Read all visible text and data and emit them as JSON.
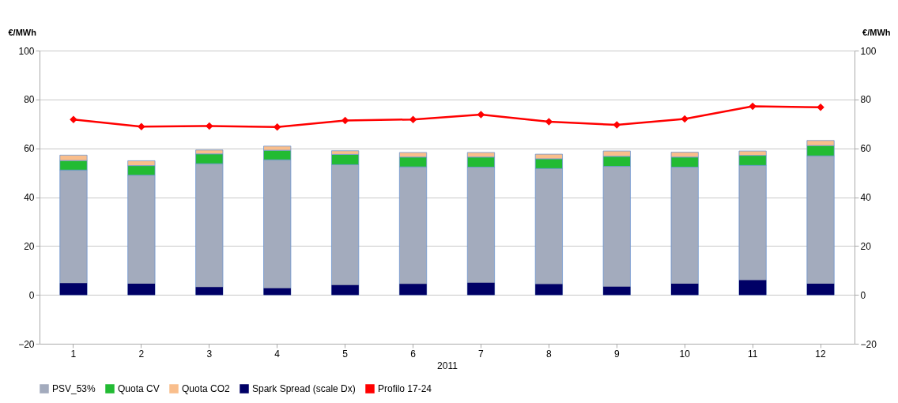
{
  "chart_data": {
    "type": "bar",
    "stacked": true,
    "xlabel": "2011",
    "ylabel": "€/MWh",
    "y2label": "€/MWh",
    "categories": [
      "1",
      "2",
      "3",
      "4",
      "5",
      "6",
      "7",
      "8",
      "9",
      "10",
      "11",
      "12"
    ],
    "series": [
      {
        "name": "PSV_53%",
        "color": "#a3abbd",
        "values": [
          51.1,
          49.0,
          53.7,
          55.3,
          53.3,
          52.4,
          52.3,
          51.7,
          52.6,
          52.3,
          53.0,
          56.9
        ]
      },
      {
        "name": "Quota CV",
        "color": "#22bb33",
        "values": [
          3.9,
          3.9,
          4.0,
          3.9,
          4.2,
          4.0,
          4.1,
          4.0,
          4.1,
          4.1,
          4.1,
          4.2
        ]
      },
      {
        "name": "Quota CO2",
        "color": "#f9be8c",
        "values": [
          2.2,
          2.0,
          1.6,
          1.7,
          1.5,
          1.9,
          1.9,
          1.9,
          2.2,
          2.0,
          1.8,
          2.1
        ]
      },
      {
        "name": "Spark Spread (scale Dx)",
        "color": "#000066",
        "axis": "y2",
        "values": [
          4.8,
          4.6,
          3.2,
          2.7,
          4.0,
          4.5,
          5.0,
          4.4,
          3.4,
          4.6,
          6.0,
          4.6
        ]
      },
      {
        "name": "Profilo 17-24",
        "type": "line",
        "color": "#ff0000",
        "marker": "diamond",
        "line_style": "solid",
        "values": [
          71.8,
          68.9,
          69.1,
          68.7,
          71.4,
          71.8,
          73.8,
          70.9,
          69.6,
          72.0,
          77.2,
          76.8
        ]
      }
    ],
    "ylim": [
      -20,
      100
    ],
    "yticks": [
      -20,
      0,
      20,
      40,
      60,
      80,
      100
    ],
    "y2lim": [
      -20,
      100
    ],
    "y2ticks": [
      -20,
      0,
      20,
      40,
      60,
      80,
      100
    ],
    "grid": "y",
    "legend": "bottom"
  }
}
